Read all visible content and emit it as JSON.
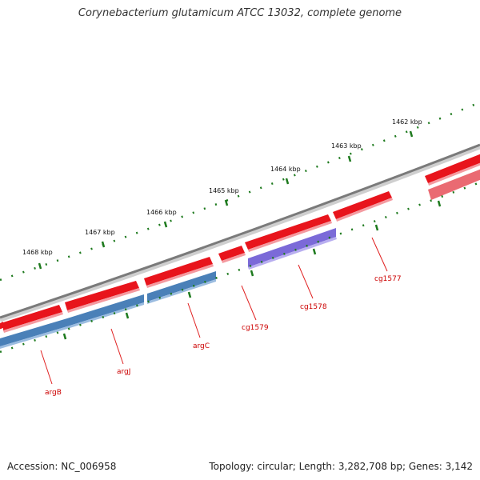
{
  "title": "Corynebacterium glutamicum ATCC 13032, complete genome",
  "footer": {
    "accession": "Accession: NC_006958",
    "topology": "Topology: circular; Length: 3,282,708 bp; Genes: 3,142"
  },
  "colors": {
    "backbone": "#8a8a8a",
    "gene_forward": "#e8141c",
    "gene_forward_light": "#ef7a80",
    "gene_reverse_blue": "#4a80b8",
    "gene_reverse_purple": "#7b6ad8",
    "tick": "#1e7a1e",
    "gene_label": "#cc0000"
  },
  "scale_ticks": [
    {
      "label": "1468 kbp"
    },
    {
      "label": "1467 kbp"
    },
    {
      "label": "1466 kbp"
    },
    {
      "label": "1465 kbp"
    },
    {
      "label": "1464 kbp"
    },
    {
      "label": "1463 kbp"
    },
    {
      "label": "1462 kbp"
    }
  ],
  "gene_labels": [
    {
      "name": "argB"
    },
    {
      "name": "argJ"
    },
    {
      "name": "argC"
    },
    {
      "name": "cg1579"
    },
    {
      "name": "cg1578"
    },
    {
      "name": "cg1577"
    }
  ]
}
